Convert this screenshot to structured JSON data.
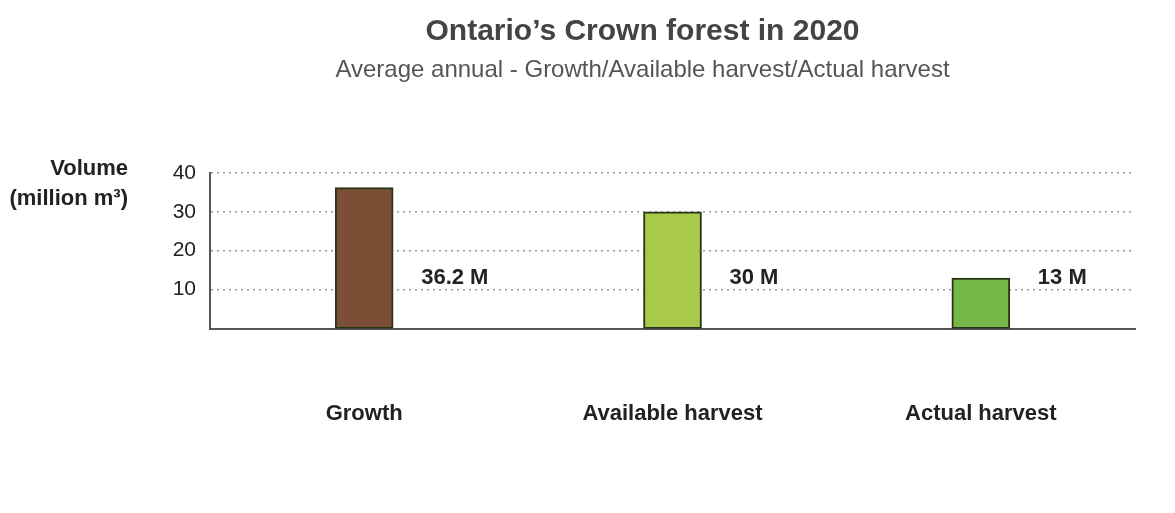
{
  "chart_data": {
    "type": "bar",
    "title": "Ontario’s Crown forest in 2020",
    "subtitle": "Average annual - Growth/Available harvest/Actual harvest",
    "y_label": "Volume (million m³)",
    "categories": [
      "Growth",
      "Available harvest",
      "Actual harvest"
    ],
    "values": [
      36.2,
      30,
      13
    ],
    "value_labels": [
      "36.2 M",
      "30 M",
      "13 M"
    ],
    "colors": [
      "#7a4f36",
      "#a9c94a",
      "#75b648"
    ],
    "ylim": [
      0,
      40
    ],
    "yticks": [
      10,
      20,
      30,
      40
    ],
    "grid": true,
    "data_labels": true
  }
}
